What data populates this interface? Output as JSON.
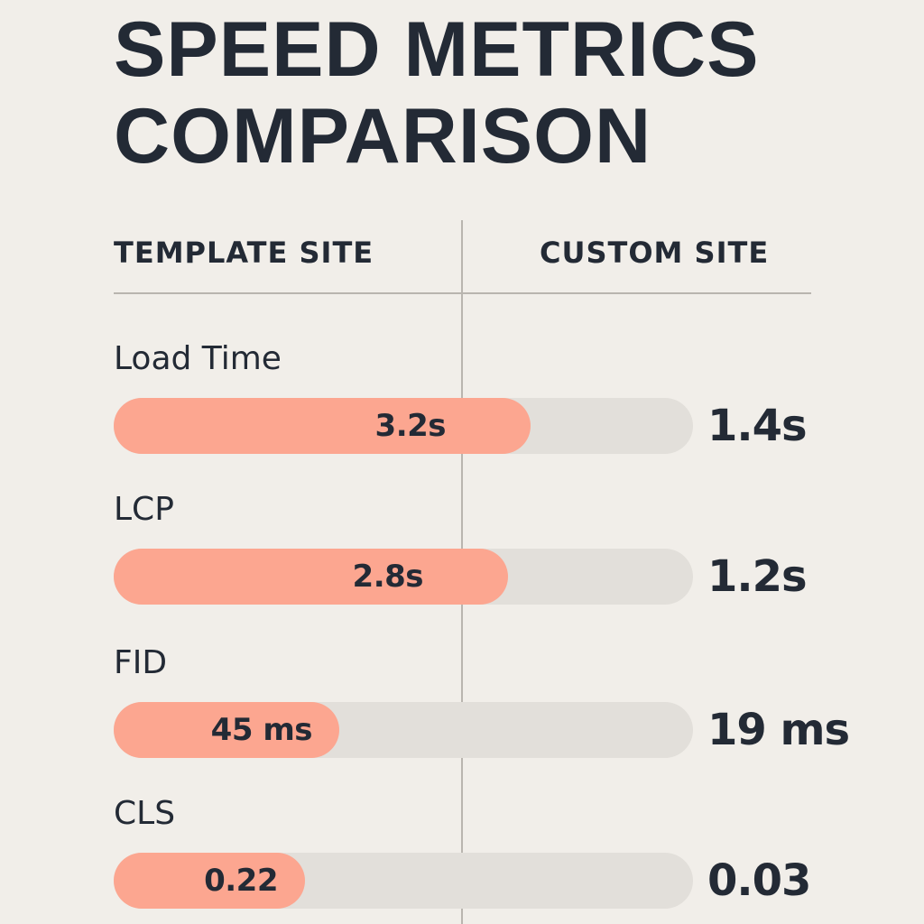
{
  "title_lines": [
    "SPEED METRICS",
    "COMPARISON"
  ],
  "headers": {
    "template": "TEMPLATE SITE",
    "custom": "CUSTOM SITE"
  },
  "colors": {
    "background": "#f1eee9",
    "template_bar": "#fca690",
    "track": "#e2dfda",
    "text": "#232a35",
    "divider": "#b9b5af"
  },
  "chart_data": {
    "type": "bar",
    "title": "SPEED METRICS COMPARISON",
    "categories": [
      "Load Time",
      "LCP",
      "FID",
      "CLS"
    ],
    "series": [
      {
        "name": "TEMPLATE SITE",
        "values": [
          3.2,
          2.8,
          45,
          0.22
        ],
        "labels": [
          "3.2s",
          "2.8s",
          "45 ms",
          "0.22"
        ]
      },
      {
        "name": "CUSTOM SITE",
        "values": [
          1.4,
          1.2,
          19,
          0.03
        ],
        "labels": [
          "1.4s",
          "1.2s",
          "19 ms",
          "0.03"
        ]
      }
    ],
    "bar_fill_fraction": [
      0.72,
      0.68,
      0.39,
      0.33
    ],
    "grid": false,
    "legend": "column headers"
  }
}
